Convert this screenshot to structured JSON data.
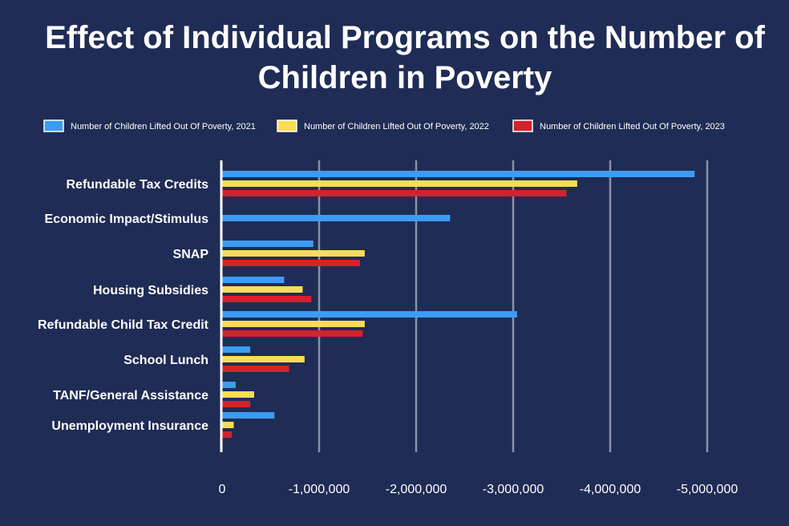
{
  "chart_data": {
    "type": "bar",
    "orientation": "horizontal",
    "title": "Effect of Individual Programs on the Number of Children in Poverty",
    "categories": [
      "Refundable Tax Credits",
      "Economic Impact/Stimulus",
      "SNAP",
      "Housing Subsidies",
      "Refundable Child Tax Credit",
      "School Lunch",
      "TANF/General Assistance",
      "Unemployment Insurance"
    ],
    "series": [
      {
        "name": "Number of Children Lifted Out Of Poverty, 2021",
        "color": "#3b9cf3",
        "values": [
          -4870000,
          -2350000,
          -940000,
          -640000,
          -3040000,
          -290000,
          -140000,
          -540000
        ]
      },
      {
        "name": "Number of Children Lifted Out Of Poverty, 2022",
        "color": "#fbdc55",
        "values": [
          -3660000,
          null,
          -1470000,
          -830000,
          -1470000,
          -850000,
          -330000,
          -120000
        ]
      },
      {
        "name": "Number of Children Lifted Out Of Poverty, 2023",
        "color": "#d4222c",
        "values": [
          -3550000,
          null,
          -1420000,
          -920000,
          -1450000,
          -690000,
          -290000,
          -100000
        ]
      }
    ],
    "xticks": [
      0,
      -1000000,
      -2000000,
      -3000000,
      -4000000,
      -5000000
    ],
    "xtick_labels": [
      "0",
      "-1,000,000",
      "-2,000,000",
      "-3,000,000",
      "-4,000,000",
      "-5,000,000"
    ],
    "xlim": [
      0,
      -5000000
    ],
    "xlabel": "",
    "ylabel": "",
    "grid": true,
    "legend_position": "top"
  }
}
